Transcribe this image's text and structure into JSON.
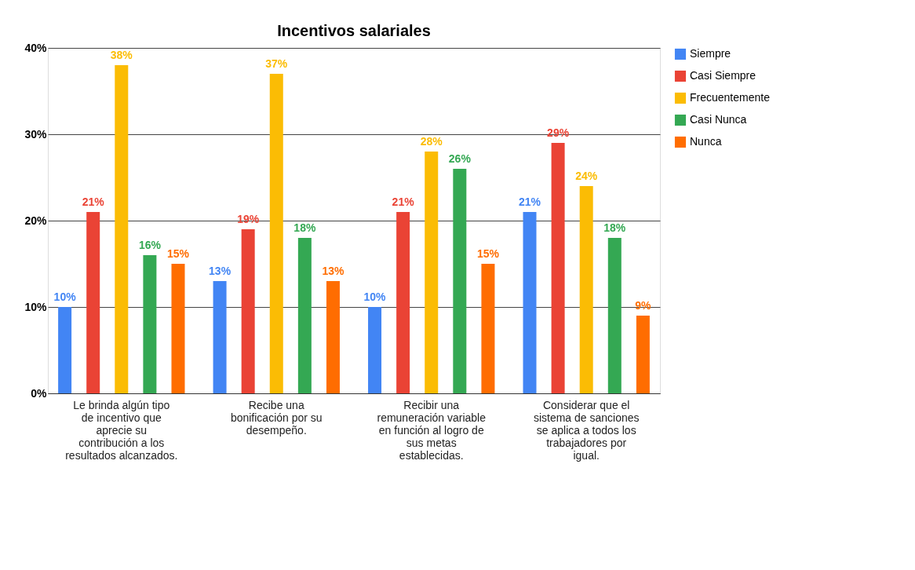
{
  "chart_data": {
    "type": "bar",
    "title": "Incentivos salariales",
    "categories": [
      "Le brinda algún tipo de incentivo que aprecie su contribución a los resultados alcanzados.",
      "Recibe una bonificación por su desempeño.",
      "Recibir una remuneración variable en función al logro de sus metas establecidas.",
      "Considerar que el sistema de sanciones se aplica a todos los trabajadores por igual."
    ],
    "series": [
      {
        "name": "Siempre",
        "color": "#4285f4",
        "values": [
          10,
          13,
          10,
          21
        ],
        "value_labels": [
          "10%",
          "13%",
          "10%",
          "21%"
        ]
      },
      {
        "name": "Casi Siempre",
        "color": "#ea4335",
        "values": [
          21,
          19,
          21,
          29
        ],
        "value_labels": [
          "21%",
          "19%",
          "21%",
          "29%"
        ]
      },
      {
        "name": "Frecuentemente",
        "color": "#fbbc04",
        "values": [
          38,
          37,
          28,
          24
        ],
        "value_labels": [
          "38%",
          "37%",
          "28%",
          "24%"
        ]
      },
      {
        "name": "Casi Nunca",
        "color": "#34a853",
        "values": [
          16,
          18,
          26,
          18
        ],
        "value_labels": [
          "16%",
          "18%",
          "26%",
          "18%"
        ]
      },
      {
        "name": "Nunca",
        "color": "#ff6d01",
        "values": [
          15,
          13,
          15,
          9
        ],
        "value_labels": [
          "15%",
          "13%",
          "15%",
          "9%"
        ]
      }
    ],
    "ylim": [
      0,
      40
    ],
    "yticks": [
      {
        "value": 0,
        "label": "0%"
      },
      {
        "value": 10,
        "label": "10%"
      },
      {
        "value": 20,
        "label": "20%"
      },
      {
        "value": 30,
        "label": "30%"
      },
      {
        "value": 40,
        "label": "40%"
      }
    ],
    "grid": "y",
    "legend": "top right"
  }
}
